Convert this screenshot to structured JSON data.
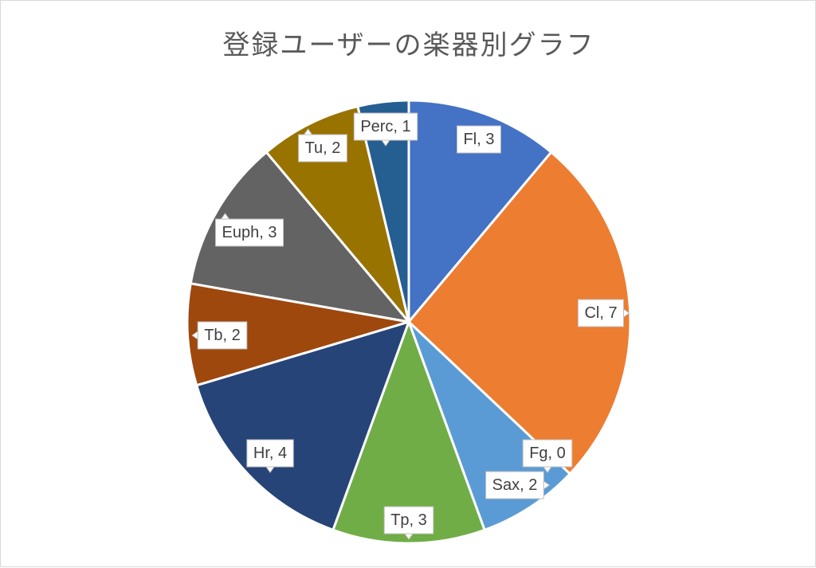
{
  "chart_data": {
    "type": "pie",
    "title": "登録ユーザーの楽器別グラフ",
    "legend": "none",
    "categories": [
      "Fl",
      "Cl",
      "Fg",
      "Sax",
      "Tp",
      "Hr",
      "Tb",
      "Euph",
      "Tu",
      "Perc"
    ],
    "values": [
      3,
      7,
      0,
      2,
      3,
      4,
      2,
      3,
      2,
      1
    ],
    "colors": [
      "#4472C4",
      "#ED7D31",
      "#A5A5A5",
      "#5B9BD5",
      "#70AD47",
      "#264478",
      "#9E480E",
      "#636363",
      "#997300",
      "#255E91"
    ],
    "data_labels": [
      "Fl, 3",
      "Cl, 7",
      "Fg, 0",
      "Sax, 2",
      "Tp, 3",
      "Hr, 4",
      "Tb, 2",
      "Euph, 3",
      "Tu, 2",
      "Perc, 1"
    ]
  }
}
